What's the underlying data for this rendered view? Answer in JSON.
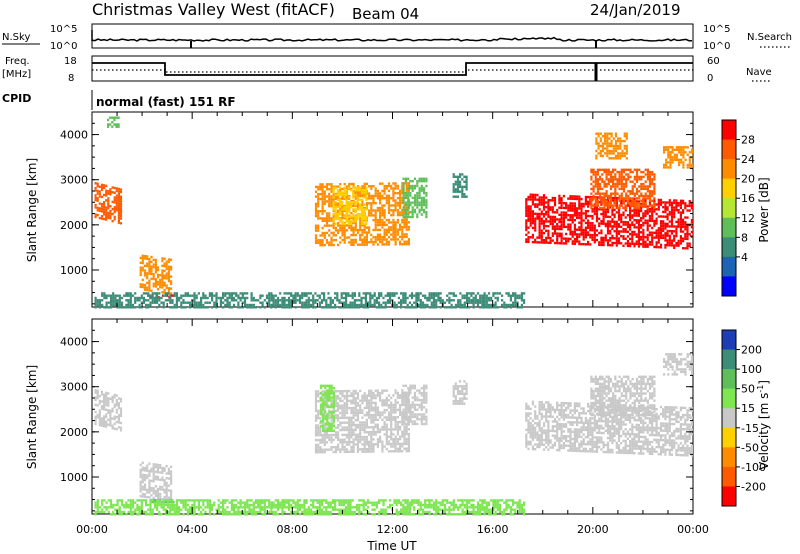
{
  "header": {
    "title": "Christmas Valley West (fitACF)",
    "beam": "Beam 04",
    "date": "24/Jan/2019"
  },
  "top_panels": {
    "nsky_label": "N.Sky",
    "nsky_ticks": [
      "10^5",
      "10^0"
    ],
    "nsearch_label": "N.Search",
    "nsearch_ticks": [
      "10^5",
      "10^0"
    ],
    "freq_label_1": "Freq.",
    "freq_label_2": "[MHz]",
    "freq_ticks": [
      "18",
      "8"
    ],
    "nave_label": "Nave",
    "nave_ticks": [
      "60",
      "0"
    ],
    "cpid_label": "CPID",
    "cpid_text": "normal (fast) 151 RF"
  },
  "chart_data": [
    {
      "type": "heatmap",
      "name": "power",
      "ylabel": "Slant Range [km]",
      "xlabel": "",
      "xlim": [
        0,
        24
      ],
      "ylim": [
        180,
        4500
      ],
      "yticks": [
        "1000",
        "2000",
        "3000",
        "4000"
      ],
      "colorbar": {
        "label": "Power [dB]",
        "ticks": [
          "28",
          "24",
          "20",
          "16",
          "12",
          "8",
          "4"
        ],
        "colors": [
          "#ff0000",
          "#ff5a00",
          "#ff8c00",
          "#ffd000",
          "#b4e632",
          "#5fbe5a",
          "#3c8c78",
          "#1e64b4",
          "#0000ff"
        ]
      },
      "patches": [
        {
          "t0": 0.1,
          "t1": 1.2,
          "r0": 1900,
          "r1": 2700,
          "tr0": 2500,
          "tr1": 3000,
          "c": "#ff5a00"
        },
        {
          "t0": 0.6,
          "t1": 1.1,
          "r0": 4200,
          "r1": 4450,
          "c": "#5fbe5a"
        },
        {
          "t0": 1.9,
          "t1": 3.2,
          "r0": 700,
          "r1": 1500,
          "tr0": 500,
          "tr1": 1100,
          "c": "#ff8c00"
        },
        {
          "t0": 2.2,
          "t1": 3.3,
          "r0": 420,
          "r1": 500,
          "c": "#ff0000"
        },
        {
          "t0": 8.9,
          "t1": 12.7,
          "r0": 1700,
          "r1": 3100,
          "tr0": 1450,
          "tr1": 2900,
          "c": "#ff8c00"
        },
        {
          "t0": 9.6,
          "t1": 11.0,
          "r0": 2050,
          "r1": 2900,
          "c": "#ffd000"
        },
        {
          "t0": 12.4,
          "t1": 13.4,
          "r0": 2200,
          "r1": 3100,
          "c": "#5fbe5a"
        },
        {
          "t0": 14.4,
          "t1": 15.0,
          "r0": 2650,
          "r1": 3200,
          "c": "#3c8c78"
        },
        {
          "t0": 17.3,
          "t1": 24.0,
          "r0": 1600,
          "r1": 2700,
          "tr0": 1700,
          "tr1": 2500,
          "c": "#ff0000"
        },
        {
          "t0": 19.9,
          "t1": 22.5,
          "r0": 2400,
          "r1": 3300,
          "c": "#ff5a00"
        },
        {
          "t0": 20.1,
          "t1": 21.4,
          "r0": 3500,
          "r1": 4100,
          "c": "#ff8c00"
        },
        {
          "t0": 22.8,
          "t1": 24.0,
          "r0": 3300,
          "r1": 3800,
          "c": "#ff8c00"
        },
        {
          "t0": 0.1,
          "t1": 17.3,
          "r0": 200,
          "r1": 560,
          "c": "#3c8c78"
        }
      ]
    },
    {
      "type": "heatmap",
      "name": "velocity",
      "ylabel": "Slant Range [km]",
      "xlabel": "Time UT",
      "xlim": [
        0,
        24
      ],
      "ylim": [
        180,
        4500
      ],
      "xticks": [
        "00:00",
        "04:00",
        "08:00",
        "12:00",
        "16:00",
        "20:00",
        "00:00"
      ],
      "yticks": [
        "1000",
        "2000",
        "3000",
        "4000"
      ],
      "colorbar": {
        "label": "Velocity [m s^-1]",
        "ticks": [
          "200",
          "100",
          "50",
          "15",
          "-15",
          "-50",
          "-100",
          "-200"
        ],
        "colors": [
          "#1e3cb4",
          "#3c8c78",
          "#5fbe5a",
          "#7de650",
          "#c8c8c8",
          "#ffd000",
          "#ff8c00",
          "#ff5a00",
          "#ff0000"
        ]
      },
      "patches": [
        {
          "t0": 0.1,
          "t1": 1.2,
          "r0": 1900,
          "r1": 2700,
          "tr0": 2500,
          "tr1": 3000,
          "c": "#c8c8c8"
        },
        {
          "t0": 1.9,
          "t1": 3.2,
          "r0": 700,
          "r1": 1500,
          "tr0": 500,
          "tr1": 1100,
          "c": "#c8c8c8"
        },
        {
          "t0": 2.3,
          "t1": 3.3,
          "r0": 470,
          "r1": 560,
          "c": "#5fbe5a"
        },
        {
          "t0": 8.9,
          "t1": 12.7,
          "r0": 1700,
          "r1": 3100,
          "tr0": 1450,
          "tr1": 2900,
          "c": "#c8c8c8"
        },
        {
          "t0": 9.1,
          "t1": 9.7,
          "r0": 2050,
          "r1": 3100,
          "c": "#7de650"
        },
        {
          "t0": 12.4,
          "t1": 13.4,
          "r0": 2200,
          "r1": 3100,
          "c": "#c8c8c8"
        },
        {
          "t0": 14.4,
          "t1": 15.0,
          "r0": 2650,
          "r1": 3200,
          "c": "#c8c8c8"
        },
        {
          "t0": 17.3,
          "t1": 24.0,
          "r0": 1600,
          "r1": 2700,
          "tr0": 1700,
          "tr1": 2500,
          "c": "#c8c8c8"
        },
        {
          "t0": 19.9,
          "t1": 22.5,
          "r0": 2400,
          "r1": 3300,
          "c": "#c8c8c8"
        },
        {
          "t0": 22.8,
          "t1": 24.0,
          "r0": 3300,
          "r1": 3800,
          "c": "#c8c8c8"
        },
        {
          "t0": 0.1,
          "t1": 17.3,
          "r0": 200,
          "r1": 560,
          "c": "#7de650"
        }
      ]
    }
  ]
}
